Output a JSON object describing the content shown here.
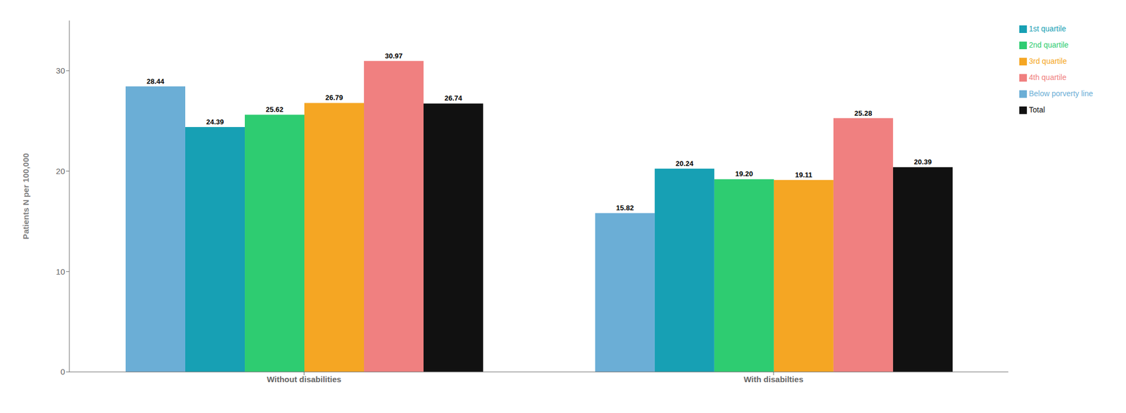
{
  "chart_data": {
    "type": "bar",
    "categories": [
      "Without disabilities",
      "With disabilties"
    ],
    "series": [
      {
        "name": "Below porverty line",
        "color": "#6baed6",
        "values": [
          28.44,
          15.82
        ],
        "value_labels": [
          "28.44",
          "15.82"
        ]
      },
      {
        "name": "1st quartile",
        "color": "#17a0b4",
        "values": [
          24.39,
          20.24
        ],
        "value_labels": [
          "24.39",
          "20.24"
        ]
      },
      {
        "name": "2nd quartile",
        "color": "#2ecc71",
        "values": [
          25.62,
          19.2
        ],
        "value_labels": [
          "25.62",
          "19.20"
        ]
      },
      {
        "name": "3rd quartile",
        "color": "#f5a623",
        "values": [
          26.79,
          19.11
        ],
        "value_labels": [
          "26.79",
          "19.11"
        ]
      },
      {
        "name": "4th quartile",
        "color": "#f08080",
        "values": [
          30.97,
          25.28
        ],
        "value_labels": [
          "30.97",
          "25.28"
        ]
      },
      {
        "name": "Total",
        "color": "#111111",
        "values": [
          26.74,
          20.39
        ],
        "value_labels": [
          "26.74",
          "20.39"
        ]
      }
    ],
    "ylabel": "Patients N per 100,000",
    "ylim": [
      0,
      35
    ],
    "yticks": [
      0,
      10,
      20,
      30
    ],
    "grid": false,
    "legend": "right",
    "data_labels": true
  }
}
